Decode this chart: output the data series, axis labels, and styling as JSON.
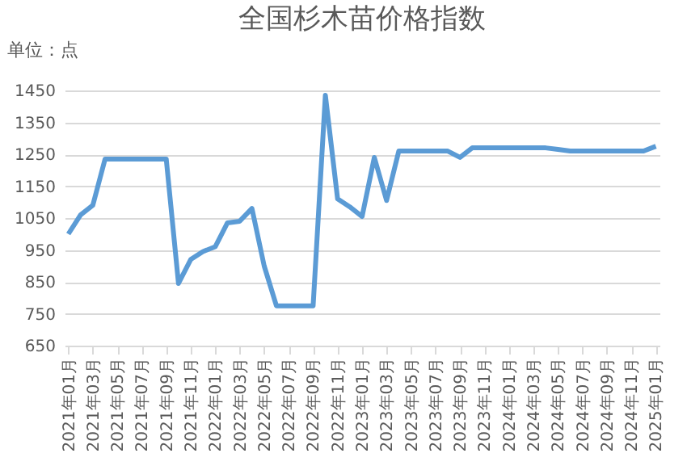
{
  "chart_data": {
    "type": "line",
    "title": "全国杉木苗价格指数",
    "ylabel": "单位：点",
    "categories": [
      "2021年01月",
      null,
      "2021年03月",
      null,
      "2021年05月",
      null,
      "2021年07月",
      null,
      "2021年09月",
      null,
      "2021年11月",
      null,
      "2022年01月",
      null,
      "2022年03月",
      null,
      "2022年05月",
      null,
      "2022年07月",
      null,
      "2022年09月",
      null,
      "2022年11月",
      null,
      "2023年01月",
      null,
      "2023年03月",
      null,
      "2023年05月",
      null,
      "2023年07月",
      null,
      "2023年09月",
      null,
      "2023年11月",
      null,
      "2024年01月",
      null,
      "2024年03月",
      null,
      "2024年05月",
      null,
      "2024年07月",
      null,
      "2024年09月",
      null,
      "2024年11月",
      null,
      "2025年01月"
    ],
    "values": [
      1000,
      1060,
      1090,
      1235,
      1235,
      1235,
      1235,
      1235,
      1235,
      845,
      920,
      945,
      960,
      1035,
      1040,
      1080,
      900,
      775,
      775,
      775,
      775,
      1435,
      1110,
      1085,
      1055,
      1240,
      1105,
      1260,
      1260,
      1260,
      1260,
      1260,
      1240,
      1270,
      1270,
      1270,
      1270,
      1270,
      1270,
      1270,
      1265,
      1260,
      1260,
      1260,
      1260,
      1260,
      1260,
      1260,
      1275
    ],
    "color": "#5b9bd5",
    "ylim": [
      650,
      1450
    ],
    "yticks": [
      650,
      750,
      850,
      950,
      1050,
      1150,
      1250,
      1350,
      1450
    ],
    "grid": "y"
  }
}
